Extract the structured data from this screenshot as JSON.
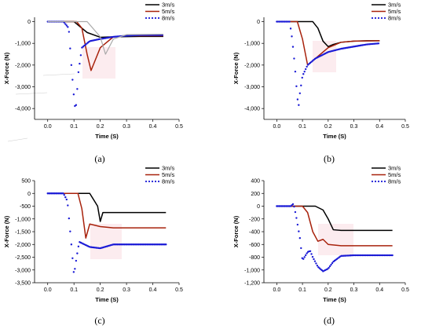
{
  "panels": [
    {
      "label": "(a)"
    },
    {
      "label": "(b)"
    },
    {
      "label": "(c)"
    },
    {
      "label": "(d)"
    }
  ],
  "colors": {
    "s3": "#000000",
    "s5": "#a8220c",
    "s8": "#1b1bd6",
    "gray": "#a9a9a9",
    "pink": "#f2b3c0"
  },
  "chart_data": [
    {
      "type": "line",
      "xlabel": "Time (S)",
      "ylabel": "X-Force (N)",
      "xlim": [
        -0.05,
        0.5
      ],
      "ylim": [
        -4500,
        200
      ],
      "xticks": [
        "0.0",
        "0.1",
        "0.2",
        "0.3",
        "0.4",
        "0.5"
      ],
      "yticks": [
        "0",
        "-1,000",
        "-2,000",
        "-3,000",
        "-4,000"
      ],
      "legend_position": "top-right",
      "series": [
        {
          "name": "3m/s",
          "style": "solid",
          "color": "#000000",
          "x": [
            0.0,
            0.1,
            0.15,
            0.2,
            0.25,
            0.3,
            0.35,
            0.44
          ],
          "y": [
            0,
            0,
            -500,
            -720,
            -700,
            -690,
            -680,
            -680
          ]
        },
        {
          "name": "5m/s",
          "style": "solid",
          "color": "#a8220c",
          "x": [
            0.0,
            0.11,
            0.13,
            0.15,
            0.165,
            0.2,
            0.25,
            0.3,
            0.44
          ],
          "y": [
            0,
            0,
            -300,
            -1500,
            -2250,
            -1200,
            -700,
            -650,
            -650
          ]
        },
        {
          "name": "8m/s",
          "style": "dotted",
          "color": "#1b1bd6",
          "x": [
            0.0,
            0.06,
            0.08,
            0.09,
            0.1,
            0.105,
            0.11,
            0.115,
            0.13,
            0.16,
            0.2,
            0.25,
            0.3,
            0.35,
            0.44
          ],
          "y": [
            0,
            0,
            -300,
            -2000,
            -3500,
            -4050,
            -3700,
            -2500,
            -1200,
            -900,
            -800,
            -700,
            -650,
            -620,
            -620
          ]
        },
        {
          "name": "",
          "style": "solid",
          "color": "#a9a9a9",
          "x": [
            0.0,
            0.15,
            0.2,
            0.22,
            0.25,
            0.3,
            0.44
          ],
          "y": [
            0,
            0,
            -700,
            -1500,
            -800,
            -600,
            -580
          ]
        }
      ]
    },
    {
      "type": "line",
      "xlabel": "Time (S)",
      "ylabel": "X-Force (N)",
      "xlim": [
        -0.05,
        0.5
      ],
      "ylim": [
        -4500,
        200
      ],
      "xticks": [
        "0.0",
        "0.1",
        "0.2",
        "0.3",
        "0.4",
        "0.5"
      ],
      "yticks": [
        "0",
        "-1,000",
        "-2,000",
        "-3,000",
        "-4,000"
      ],
      "legend_position": "top-right",
      "series": [
        {
          "name": "3m/s",
          "style": "solid",
          "color": "#000000",
          "x": [
            0.0,
            0.14,
            0.16,
            0.18,
            0.2,
            0.22,
            0.25,
            0.3,
            0.35,
            0.4
          ],
          "y": [
            0,
            0,
            -300,
            -900,
            -1150,
            -1050,
            -950,
            -900,
            -880,
            -880
          ]
        },
        {
          "name": "5m/s",
          "style": "solid",
          "color": "#a8220c",
          "x": [
            0.0,
            0.08,
            0.1,
            0.12,
            0.15,
            0.2,
            0.25,
            0.3,
            0.4
          ],
          "y": [
            0,
            0,
            -800,
            -2000,
            -1700,
            -1200,
            -950,
            -900,
            -880
          ]
        },
        {
          "name": "8m/s",
          "style": "dotted",
          "color": "#1b1bd6",
          "x": [
            0.0,
            0.05,
            0.06,
            0.07,
            0.08,
            0.085,
            0.09,
            0.1,
            0.12,
            0.15,
            0.2,
            0.25,
            0.3,
            0.35,
            0.4
          ],
          "y": [
            0,
            0,
            -800,
            -2000,
            -3500,
            -3900,
            -3300,
            -2500,
            -2000,
            -1700,
            -1400,
            -1250,
            -1150,
            -1050,
            -1000
          ]
        }
      ]
    },
    {
      "type": "line",
      "xlabel": "Time (S)",
      "ylabel": "X-Force (N)",
      "xlim": [
        -0.05,
        0.5
      ],
      "ylim": [
        -3500,
        500
      ],
      "xticks": [
        "0.0",
        "0.1",
        "0.2",
        "0.3",
        "0.4",
        "0.5"
      ],
      "yticks": [
        "500",
        "0",
        "-500",
        "-1,000",
        "-1,500",
        "-2,000",
        "-2,500",
        "-3,000",
        "-3,500"
      ],
      "legend_position": "top-right",
      "series": [
        {
          "name": "3m/s",
          "style": "solid",
          "color": "#000000",
          "x": [
            0.0,
            0.16,
            0.19,
            0.2,
            0.21,
            0.25,
            0.3,
            0.45
          ],
          "y": [
            0,
            0,
            -500,
            -1100,
            -750,
            -750,
            -750,
            -750
          ]
        },
        {
          "name": "5m/s",
          "style": "solid",
          "color": "#a8220c",
          "x": [
            0.0,
            0.115,
            0.13,
            0.145,
            0.16,
            0.2,
            0.25,
            0.3,
            0.45
          ],
          "y": [
            0,
            0,
            -600,
            -1750,
            -1200,
            -1300,
            -1350,
            -1350,
            -1350
          ]
        },
        {
          "name": "8m/s",
          "style": "dotted",
          "color": "#1b1bd6",
          "x": [
            0.0,
            0.06,
            0.075,
            0.09,
            0.1,
            0.11,
            0.12,
            0.14,
            0.16,
            0.2,
            0.25,
            0.3,
            0.45
          ],
          "y": [
            0,
            0,
            -300,
            -2000,
            -3200,
            -2500,
            -1900,
            -2000,
            -2100,
            -2150,
            -2000,
            -2000,
            -2000
          ]
        }
      ]
    },
    {
      "type": "line",
      "xlabel": "Time (S)",
      "ylabel": "X-Force (N)",
      "xlim": [
        -0.05,
        0.5
      ],
      "ylim": [
        -1200,
        400
      ],
      "xticks": [
        "0.0",
        "0.1",
        "0.2",
        "0.3",
        "0.4",
        "0.5"
      ],
      "yticks": [
        "400",
        "200",
        "0",
        "-200",
        "-400",
        "-600",
        "-800",
        "-1,000",
        "-1,200"
      ],
      "legend_position": "top-right",
      "series": [
        {
          "name": "3m/s",
          "style": "solid",
          "color": "#000000",
          "x": [
            0.0,
            0.15,
            0.18,
            0.2,
            0.22,
            0.25,
            0.3,
            0.45
          ],
          "y": [
            0,
            0,
            -60,
            -200,
            -370,
            -380,
            -380,
            -380
          ]
        },
        {
          "name": "5m/s",
          "style": "solid",
          "color": "#a8220c",
          "x": [
            0.0,
            0.1,
            0.12,
            0.14,
            0.16,
            0.18,
            0.2,
            0.25,
            0.3,
            0.45
          ],
          "y": [
            0,
            0,
            -100,
            -400,
            -550,
            -520,
            -600,
            -620,
            -620,
            -620
          ]
        },
        {
          "name": "8m/s",
          "style": "dotted",
          "color": "#1b1bd6",
          "x": [
            0.0,
            0.055,
            0.065,
            0.075,
            0.09,
            0.1,
            0.12,
            0.13,
            0.14,
            0.16,
            0.18,
            0.2,
            0.22,
            0.25,
            0.3,
            0.45
          ],
          "y": [
            0,
            0,
            40,
            -150,
            -500,
            -850,
            -720,
            -700,
            -800,
            -950,
            -1020,
            -980,
            -870,
            -780,
            -770,
            -770
          ]
        }
      ]
    }
  ]
}
